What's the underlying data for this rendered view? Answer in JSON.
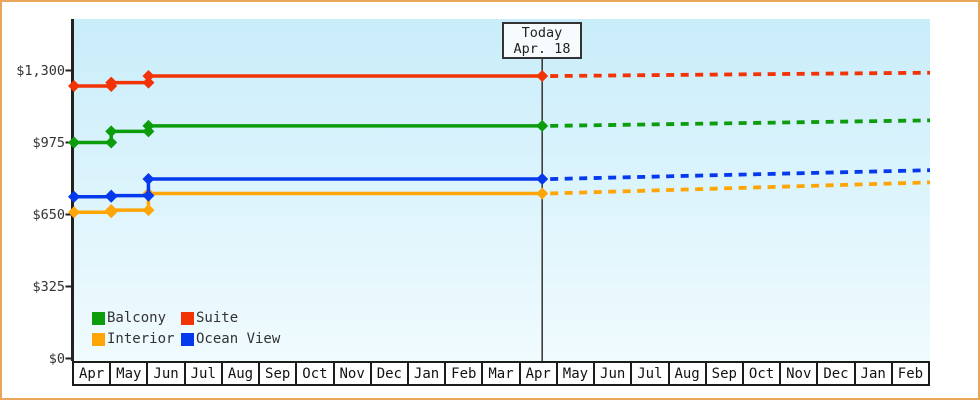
{
  "frame": {
    "border_color": "#e9a75c",
    "background": "#ffffff"
  },
  "chart_data": {
    "type": "line",
    "title": "",
    "x_months": [
      "Apr",
      "May",
      "Jun",
      "Jul",
      "Aug",
      "Sep",
      "Oct",
      "Nov",
      "Dec",
      "Jan",
      "Feb",
      "Mar",
      "Apr",
      "May",
      "Jun",
      "Jul",
      "Aug",
      "Sep",
      "Oct",
      "Nov",
      "Dec",
      "Jan",
      "Feb"
    ],
    "y_axis": {
      "ticks": [
        {
          "label": "$0",
          "value": 0
        },
        {
          "label": "$325",
          "value": 325
        },
        {
          "label": "$650",
          "value": 650
        },
        {
          "label": "$975",
          "value": 975
        },
        {
          "label": "$1,300",
          "value": 1300
        }
      ],
      "min": 0,
      "max": 1530,
      "grid": false
    },
    "today": {
      "label": "Today",
      "date": "Apr. 18",
      "month_index": 12.58
    },
    "plot": {
      "bg_top": "#c9edfa",
      "bg_bottom": "#f0fbfe",
      "axis_color": "#222222",
      "today_line_color": "#333333"
    },
    "series": [
      {
        "name": "Balcony",
        "color": "#0c9c0c",
        "history": [
          {
            "month": "Apr",
            "month_index": 0,
            "price": 975
          },
          {
            "month": "May",
            "month_index": 1,
            "price": 1025
          },
          {
            "month": "Jun",
            "month_index": 2,
            "price": 1050
          }
        ],
        "price_today": 1050,
        "forecast_end_price": 1075
      },
      {
        "name": "Suite",
        "color": "#f23305",
        "history": [
          {
            "month": "Apr",
            "month_index": 0,
            "price": 1230
          },
          {
            "month": "May",
            "month_index": 1,
            "price": 1245
          },
          {
            "month": "Jun",
            "month_index": 2,
            "price": 1275
          }
        ],
        "price_today": 1275,
        "forecast_end_price": 1290
      },
      {
        "name": "Interior",
        "color": "#ffa506",
        "history": [
          {
            "month": "Apr",
            "month_index": 0,
            "price": 660
          },
          {
            "month": "May",
            "month_index": 1,
            "price": 670
          },
          {
            "month": "Jun",
            "month_index": 2,
            "price": 745
          }
        ],
        "price_today": 745,
        "forecast_end_price": 795
      },
      {
        "name": "Ocean View",
        "color": "#0639ec",
        "history": [
          {
            "month": "Apr",
            "month_index": 0,
            "price": 730
          },
          {
            "month": "May",
            "month_index": 1,
            "price": 735
          },
          {
            "month": "Jun",
            "month_index": 2,
            "price": 810
          }
        ],
        "price_today": 810,
        "forecast_end_price": 850
      }
    ],
    "legend_position": "bottom-left-inside-plot"
  }
}
